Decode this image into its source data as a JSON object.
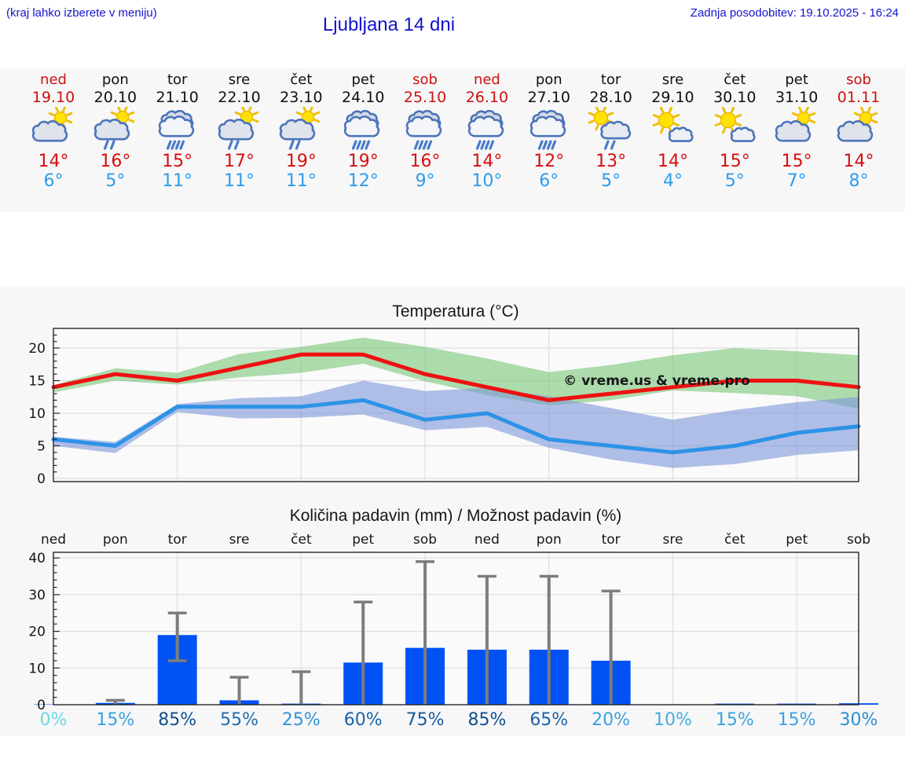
{
  "header": {
    "hint": "(kraj lahko izberete v meniju)",
    "title": "Ljubljana 14 dni",
    "updated": "Zadnja posodobitev: 19.10.2025 - 16:24"
  },
  "colors": {
    "accent_blue_text": "#1414cc",
    "weekend_red": "#cc1111",
    "tmax_red": "#d60f0f",
    "tmin_blue": "#2e9ce8",
    "strip_background": "#f7f7f8",
    "plot_background": "#fafafa",
    "gridline": "#dedede",
    "frame": "#262626"
  },
  "forecast": {
    "days": [
      {
        "name": "ned",
        "date": "19.10",
        "weekend": true,
        "icon": "partly-cloudy-icon",
        "tmax": "14°",
        "tmin": "6°"
      },
      {
        "name": "pon",
        "date": "20.10",
        "weekend": false,
        "icon": "partly-cloudy-rain-icon",
        "tmax": "16°",
        "tmin": "5°"
      },
      {
        "name": "tor",
        "date": "21.10",
        "weekend": false,
        "icon": "cloudy-heavy-rain-icon",
        "tmax": "15°",
        "tmin": "11°"
      },
      {
        "name": "sre",
        "date": "22.10",
        "weekend": false,
        "icon": "partly-cloudy-rain-icon",
        "tmax": "17°",
        "tmin": "11°"
      },
      {
        "name": "čet",
        "date": "23.10",
        "weekend": false,
        "icon": "partly-cloudy-rain-icon",
        "tmax": "19°",
        "tmin": "11°"
      },
      {
        "name": "pet",
        "date": "24.10",
        "weekend": false,
        "icon": "cloudy-heavy-rain-icon",
        "tmax": "19°",
        "tmin": "12°"
      },
      {
        "name": "sob",
        "date": "25.10",
        "weekend": true,
        "icon": "cloudy-heavy-rain-icon",
        "tmax": "16°",
        "tmin": "9°"
      },
      {
        "name": "ned",
        "date": "26.10",
        "weekend": true,
        "icon": "cloudy-heavy-rain-icon",
        "tmax": "14°",
        "tmin": "10°"
      },
      {
        "name": "pon",
        "date": "27.10",
        "weekend": false,
        "icon": "cloudy-heavy-rain-icon",
        "tmax": "12°",
        "tmin": "6°"
      },
      {
        "name": "tor",
        "date": "28.10",
        "weekend": false,
        "icon": "sunny-cloud-rain-icon",
        "tmax": "13°",
        "tmin": "5°"
      },
      {
        "name": "sre",
        "date": "29.10",
        "weekend": false,
        "icon": "sunny-cloud-icon",
        "tmax": "14°",
        "tmin": "4°"
      },
      {
        "name": "čet",
        "date": "30.10",
        "weekend": false,
        "icon": "sunny-cloud-icon",
        "tmax": "15°",
        "tmin": "5°"
      },
      {
        "name": "pet",
        "date": "31.10",
        "weekend": false,
        "icon": "partly-cloudy-icon",
        "tmax": "15°",
        "tmin": "7°"
      },
      {
        "name": "sob",
        "date": "01.11",
        "weekend": true,
        "icon": "partly-cloudy-icon",
        "tmax": "14°",
        "tmin": "8°"
      }
    ]
  },
  "chart_data": [
    {
      "type": "line",
      "title": "Temperatura (°C)",
      "watermark": "© vreme.us & vreme.pro",
      "x_days": [
        "ned",
        "pon",
        "tor",
        "sre",
        "čet",
        "pet",
        "sob",
        "ned",
        "pon",
        "tor",
        "sre",
        "čet",
        "pet",
        "sob"
      ],
      "ylim": [
        0,
        23
      ],
      "yticks": [
        0,
        5,
        10,
        15,
        20
      ],
      "grid_x_indexes": [
        2,
        4,
        6,
        8,
        10,
        12
      ],
      "series": [
        {
          "name": "max-temp",
          "color": "#ee1111",
          "values": [
            14,
            16,
            15,
            17,
            19,
            19,
            16,
            14,
            12,
            13,
            14,
            15,
            15,
            14
          ]
        },
        {
          "name": "min-temp",
          "color": "#2d93e8",
          "values": [
            6,
            5,
            11,
            11,
            11,
            12,
            9,
            10,
            6,
            5,
            4,
            5,
            7,
            8
          ]
        }
      ],
      "bands": [
        {
          "name": "max-temp-range",
          "color": "#7cc87c",
          "opacity": 0.62,
          "upper": [
            14.3,
            16.9,
            16.2,
            19.1,
            20.2,
            21.6,
            20.2,
            18.4,
            16.3,
            17.4,
            18.9,
            20.0,
            19.5,
            18.9
          ],
          "lower": [
            13.2,
            15.0,
            14.4,
            15.5,
            16.2,
            17.6,
            14.9,
            12.8,
            11.2,
            12.0,
            13.5,
            13.1,
            12.6,
            10.7
          ]
        },
        {
          "name": "min-temp-range",
          "color": "#7b96d8",
          "opacity": 0.6,
          "upper": [
            6.4,
            5.6,
            11.4,
            12.3,
            12.6,
            15.0,
            13.4,
            13.9,
            12.6,
            10.8,
            9.0,
            10.5,
            11.7,
            12.5
          ],
          "lower": [
            5.0,
            3.9,
            10.2,
            9.2,
            9.3,
            9.8,
            7.4,
            7.9,
            4.7,
            2.9,
            1.6,
            2.2,
            3.6,
            4.3
          ]
        }
      ]
    },
    {
      "type": "bar",
      "title": "Količina padavin (mm) / Možnost padavin (%)",
      "categories": [
        "ned",
        "pon",
        "tor",
        "sre",
        "čet",
        "pet",
        "sob",
        "ned",
        "pon",
        "tor",
        "sre",
        "čet",
        "pet",
        "sob"
      ],
      "values": [
        0.1,
        0.5,
        19,
        1.2,
        0.3,
        11.5,
        15.5,
        15,
        15,
        12,
        0.1,
        0.3,
        0.3,
        0.4
      ],
      "whisker_max": [
        0,
        1.2,
        25,
        7.5,
        9,
        28,
        39,
        35,
        35,
        31,
        0,
        0,
        0,
        0
      ],
      "whisker_min": [
        0,
        0,
        12,
        0,
        0,
        0,
        0,
        0,
        0,
        0,
        0,
        0,
        0,
        0
      ],
      "bar_color": "#0052f5",
      "whisker_color": "#7d7d7d",
      "ylim": [
        0,
        41.5
      ],
      "yticks": [
        0,
        10,
        20,
        30,
        40
      ],
      "grid_x_indexes": [
        2,
        4,
        6,
        8,
        10,
        12
      ],
      "percent_labels": [
        {
          "label": "0%",
          "color": "#6cd9e6"
        },
        {
          "label": "15%",
          "color": "#3ba3dc"
        },
        {
          "label": "85%",
          "color": "#124e8d"
        },
        {
          "label": "55%",
          "color": "#1d6bae"
        },
        {
          "label": "25%",
          "color": "#3093d3"
        },
        {
          "label": "60%",
          "color": "#1b64a8"
        },
        {
          "label": "75%",
          "color": "#165a9d"
        },
        {
          "label": "85%",
          "color": "#124e8d"
        },
        {
          "label": "65%",
          "color": "#1a62a6"
        },
        {
          "label": "20%",
          "color": "#3ba3dc"
        },
        {
          "label": "10%",
          "color": "#45acdf"
        },
        {
          "label": "15%",
          "color": "#3ba3dc"
        },
        {
          "label": "15%",
          "color": "#3ba3dc"
        },
        {
          "label": "30%",
          "color": "#2d8fd0"
        }
      ]
    }
  ]
}
